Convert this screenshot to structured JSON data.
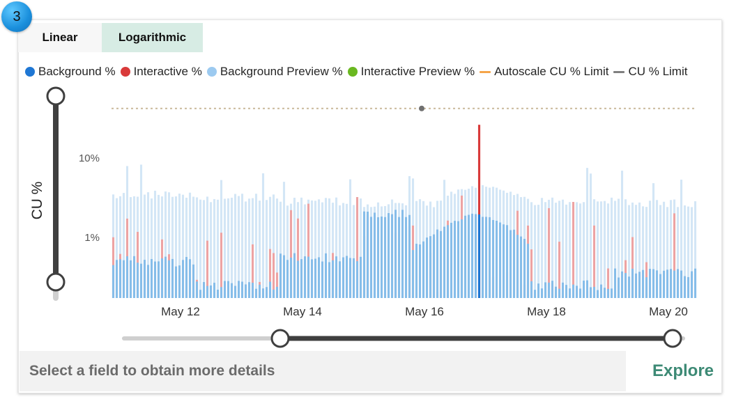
{
  "badge": "3",
  "tabs": [
    {
      "label": "Linear",
      "active": false
    },
    {
      "label": "Logarithmic",
      "active": true
    }
  ],
  "legend": [
    {
      "label": "Background %",
      "color": "#1f77d4",
      "kind": "dot"
    },
    {
      "label": "Interactive %",
      "color": "#d93a3a",
      "kind": "dot"
    },
    {
      "label": "Background Preview %",
      "color": "#9ccaf0",
      "kind": "dot"
    },
    {
      "label": "Interactive Preview %",
      "color": "#6ab820",
      "kind": "dot"
    },
    {
      "label": "Autoscale CU % Limit",
      "color": "#f5a54a",
      "kind": "line"
    },
    {
      "label": "CU % Limit",
      "color": "#808080",
      "kind": "line"
    }
  ],
  "chart_data": {
    "type": "bar",
    "ylabel": "CU %",
    "yscale": "log",
    "ytick_labels": [
      "10%",
      "1%"
    ],
    "yticks": [
      10,
      1
    ],
    "ylim": [
      0.13,
      55
    ],
    "x_tick_labels": [
      "May 12",
      "May 14",
      "May 16",
      "May 18",
      "May 20"
    ],
    "x_range_days": [
      "May 10",
      "May 21"
    ],
    "limit_line": 40,
    "limit_line_style": "dotted",
    "background_base": [
      0.5,
      0.25,
      0.55,
      2.0,
      0.9,
      0.25,
      0.35
    ],
    "background_preview_base": [
      3.3,
      3.0,
      2.7,
      2.6,
      4.0,
      2.7,
      2.6
    ],
    "peak_interactive": 25,
    "peak_date": "May 16"
  },
  "footer": {
    "message": "Select a field to obtain more details",
    "explore_label": "Explore"
  }
}
